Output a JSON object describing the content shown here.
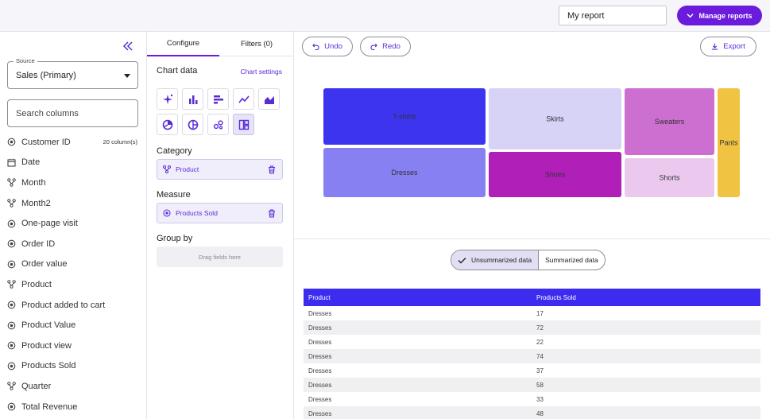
{
  "header": {
    "report_name": "My report",
    "manage_reports_label": "Manage reports"
  },
  "sidebar": {
    "source_label": "Source",
    "source_value": "Sales (Primary)",
    "search_placeholder": "Search columns",
    "column_count": "20 column(s)",
    "columns": [
      {
        "label": "Customer ID",
        "icon": "circle-dot"
      },
      {
        "label": "Date",
        "icon": "calendar"
      },
      {
        "label": "Month",
        "icon": "hierarchy"
      },
      {
        "label": "Month2",
        "icon": "hierarchy"
      },
      {
        "label": "One-page visit",
        "icon": "circle-dot"
      },
      {
        "label": "Order ID",
        "icon": "circle-dot"
      },
      {
        "label": "Order value",
        "icon": "circle-dot"
      },
      {
        "label": "Product",
        "icon": "hierarchy"
      },
      {
        "label": "Product added to cart",
        "icon": "circle-dot"
      },
      {
        "label": "Product Value",
        "icon": "circle-dot"
      },
      {
        "label": "Product view",
        "icon": "circle-dot"
      },
      {
        "label": "Products Sold",
        "icon": "circle-dot"
      },
      {
        "label": "Quarter",
        "icon": "hierarchy"
      },
      {
        "label": "Total Revenue",
        "icon": "circle-dot"
      }
    ]
  },
  "config": {
    "tabs": [
      {
        "label": "Configure",
        "active": true
      },
      {
        "label": "Filters (0)",
        "active": false
      }
    ],
    "chart_data_title": "Chart data",
    "chart_settings_label": "Chart settings",
    "chart_types": [
      "sparkle-icon",
      "bar-chart-icon",
      "horizontal-bar-icon",
      "line-chart-icon",
      "area-chart-icon",
      "pie-chart-icon",
      "donut-chart-icon",
      "scatter-icon",
      "treemap-icon"
    ],
    "active_chart_type": "treemap-icon",
    "category_title": "Category",
    "category_field": "Product",
    "measure_title": "Measure",
    "measure_field": "Products Sold",
    "group_by_title": "Group by",
    "group_by_placeholder": "Drag fields here"
  },
  "toolbar": {
    "undo_label": "Undo",
    "redo_label": "Redo",
    "export_label": "Export"
  },
  "view_toggle": {
    "options": [
      "Unsummarized data",
      "Summarized data"
    ],
    "selected": "Unsummarized data"
  },
  "chart_data": {
    "type": "treemap",
    "categories": [
      "T-shirts",
      "Dresses",
      "Skirts",
      "Shoes",
      "Sweaters",
      "Shorts",
      "Pants"
    ],
    "colors": {
      "T-shirts": "#3d34f0",
      "Dresses": "#8780f2",
      "Skirts": "#d6d3f7",
      "Shoes": "#b01fb8",
      "Sweaters": "#cd6fd1",
      "Shorts": "#ebc9ef",
      "Pants": "#f0c442"
    }
  },
  "table": {
    "columns": [
      "Product",
      "Products Sold"
    ],
    "rows": [
      [
        "Dresses",
        "17"
      ],
      [
        "Dresses",
        "72"
      ],
      [
        "Dresses",
        "22"
      ],
      [
        "Dresses",
        "74"
      ],
      [
        "Dresses",
        "37"
      ],
      [
        "Dresses",
        "58"
      ],
      [
        "Dresses",
        "33"
      ],
      [
        "Dresses",
        "48"
      ]
    ]
  }
}
